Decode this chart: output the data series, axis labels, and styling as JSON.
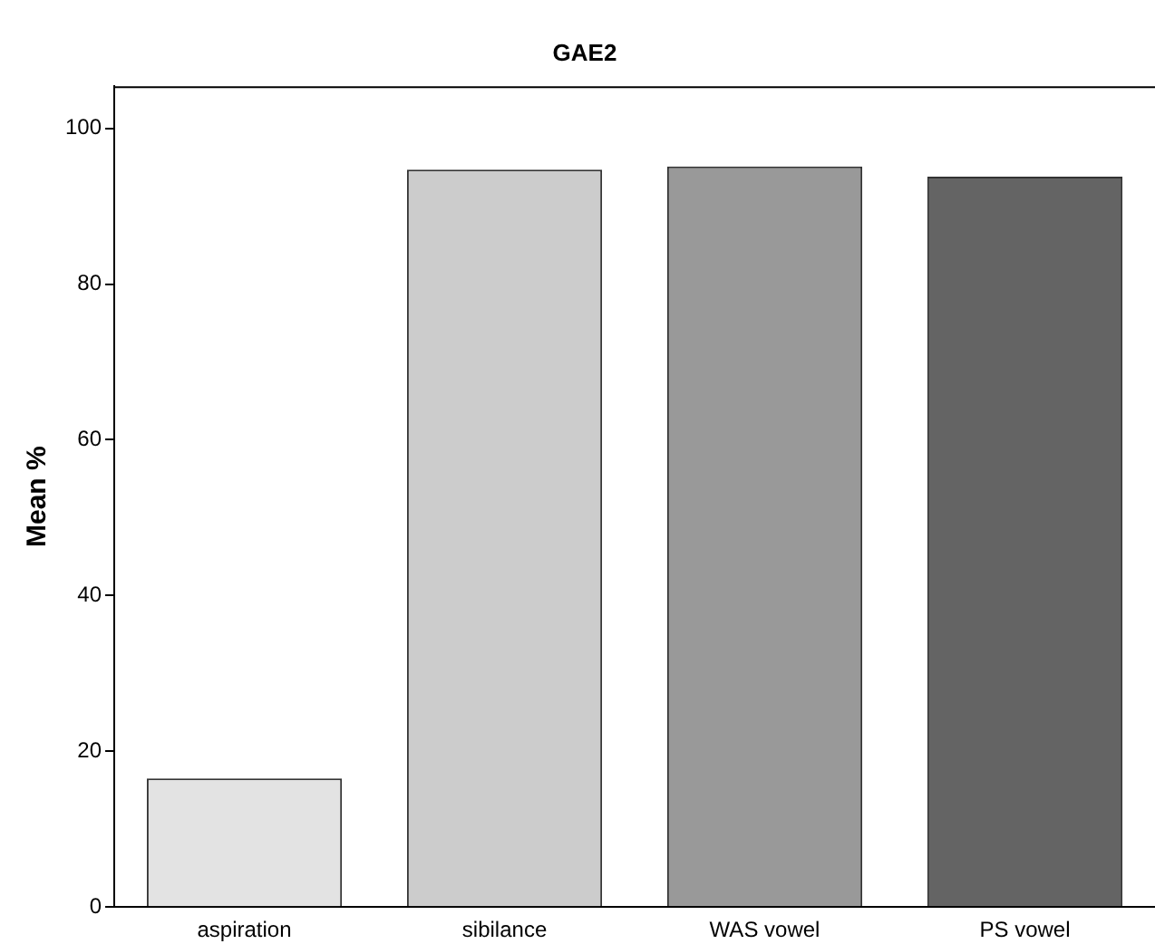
{
  "chart_data": {
    "type": "bar",
    "title": "GAE2",
    "ylabel": "Mean %",
    "categories": [
      "aspiration",
      "sibilance",
      "WAS vowel",
      "PS vowel"
    ],
    "values": [
      16.5,
      94.7,
      95.1,
      93.8
    ],
    "colors": [
      "#e3e3e3",
      "#cccccc",
      "#999999",
      "#646464"
    ],
    "ylim": [
      0,
      105.4
    ],
    "yticks": [
      0,
      20,
      40,
      60,
      80,
      100
    ],
    "grid": false,
    "legend": false
  }
}
